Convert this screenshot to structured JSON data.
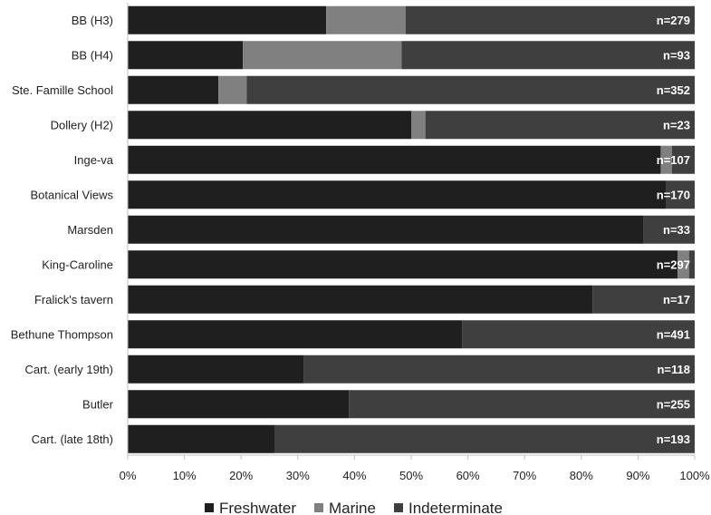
{
  "chart_data": {
    "type": "bar",
    "orientation": "horizontal",
    "stacked": "percent",
    "categories": [
      "BB (H3)",
      "BB (H4)",
      "Ste. Famille School",
      "Dollery (H2)",
      "Inge-va",
      "Botanical Views",
      "Marsden",
      "King-Caroline",
      "Fralick's tavern",
      "Bethune Thompson",
      "Cart. (early 19th)",
      "Butler",
      "Cart. (late 18th)"
    ],
    "series": [
      {
        "name": "Freshwater",
        "color": "#1f1f1f",
        "values": [
          35,
          20.3,
          16,
          50,
          94,
          95,
          91,
          97,
          82,
          59,
          31,
          39,
          26
        ]
      },
      {
        "name": "Marine",
        "color": "#808080",
        "values": [
          14,
          28,
          5,
          2.5,
          2,
          0,
          0,
          2,
          0,
          0,
          0,
          0,
          0
        ]
      },
      {
        "name": "Indeterminate",
        "color": "#3f3f3f",
        "values": [
          51,
          51.7,
          79,
          47.5,
          4,
          5,
          9,
          1,
          18,
          41,
          69,
          61,
          74
        ]
      }
    ],
    "sample_labels": [
      "n=279",
      "n=93",
      "n=352",
      "n=23",
      "n=107",
      "n=170",
      "n=33",
      "n=297",
      "n=17",
      "n=491",
      "n=118",
      "n=255",
      "n=193"
    ],
    "x_ticks": [
      "0%",
      "10%",
      "20%",
      "30%",
      "40%",
      "50%",
      "60%",
      "70%",
      "80%",
      "90%",
      "100%"
    ],
    "xlim": [
      0,
      100
    ],
    "legend_position": "bottom",
    "grid": false
  }
}
